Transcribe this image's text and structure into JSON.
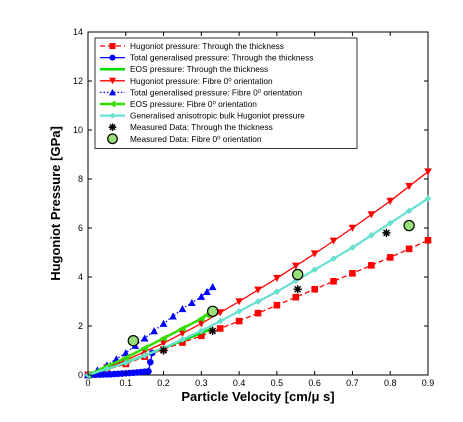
{
  "chart_data": {
    "type": "line",
    "title": "",
    "xlabel": "Particle Velocity  [cm/μ s]",
    "ylabel": "Hugoniot Pressure [GPa]",
    "xlim": [
      0,
      0.9
    ],
    "ylim": [
      0,
      14
    ],
    "xticks": [
      "0",
      "0.1",
      "0.2",
      "0.3",
      "0.4",
      "0.5",
      "0.6",
      "0.7",
      "0.8",
      "0.9"
    ],
    "yticks": [
      "0",
      "2",
      "4",
      "6",
      "8",
      "10",
      "12",
      "14"
    ],
    "grid": false,
    "legend_position": "top-left",
    "series": [
      {
        "name": "Hugoniot pressure: Through the thickness",
        "color": "#ff0000",
        "marker": "square",
        "line": "dashed",
        "x": [
          0,
          0.1,
          0.2,
          0.3,
          0.4,
          0.5,
          0.6,
          0.7,
          0.8,
          0.9
        ],
        "y": [
          0,
          0.45,
          1.05,
          1.6,
          2.2,
          2.85,
          3.5,
          4.15,
          4.8,
          5.5
        ]
      },
      {
        "name": "Total generalised pressure: Through the thickness",
        "color": "#0000ff",
        "marker": "circle",
        "line": "solid",
        "x": [
          0,
          0.02,
          0.04,
          0.06,
          0.08,
          0.1,
          0.12,
          0.14,
          0.16,
          0.17
        ],
        "y": [
          0,
          0.01,
          0.02,
          0.03,
          0.05,
          0.07,
          0.09,
          0.12,
          0.15,
          0.9
        ]
      },
      {
        "name": "EOS pressure: Through the thickness",
        "color": "#00e000",
        "marker": "none",
        "line": "solid",
        "x": [
          0,
          0.1,
          0.2,
          0.33
        ],
        "y": [
          0,
          0.5,
          1.1,
          1.9
        ]
      },
      {
        "name": "Hugoniot pressure: Fibre 0⁰ orientation",
        "color": "#ff0000",
        "marker": "triangle-down",
        "line": "solid",
        "x": [
          0,
          0.1,
          0.2,
          0.3,
          0.4,
          0.5,
          0.6,
          0.7,
          0.8,
          0.9
        ],
        "y": [
          0,
          0.6,
          1.3,
          2.1,
          3.0,
          3.95,
          4.95,
          6.0,
          7.1,
          8.3
        ]
      },
      {
        "name": "Total generalised pressure: Fibre 0⁰ orientation",
        "color": "#0000ff",
        "marker": "triangle-up",
        "line": "dotted",
        "x": [
          0,
          0.05,
          0.1,
          0.15,
          0.2,
          0.25,
          0.3,
          0.33
        ],
        "y": [
          0,
          0.4,
          0.9,
          1.5,
          2.1,
          2.7,
          3.2,
          3.6
        ]
      },
      {
        "name": "EOS pressure: Fibre 0⁰ orientation",
        "color": "#33dd00",
        "marker": "triangle-left",
        "line": "solid",
        "x": [
          0,
          0.1,
          0.2,
          0.3,
          0.33
        ],
        "y": [
          0,
          0.7,
          1.5,
          2.3,
          2.6
        ]
      },
      {
        "name": "Generalised anisotropic bulk Hugoniot pressure",
        "color": "#66e0d0",
        "marker": "diamond",
        "line": "solid",
        "x": [
          0,
          0.1,
          0.2,
          0.3,
          0.4,
          0.5,
          0.6,
          0.7,
          0.8,
          0.9
        ],
        "y": [
          0,
          0.5,
          1.1,
          1.8,
          2.6,
          3.4,
          4.3,
          5.2,
          6.2,
          7.2
        ]
      },
      {
        "name": "Measured Data: Through the thickness",
        "color": "#000000",
        "marker": "asterisk",
        "line": "none",
        "x": [
          0.2,
          0.33,
          0.555,
          0.79
        ],
        "y": [
          1.0,
          1.8,
          3.5,
          5.8
        ]
      },
      {
        "name": "Measured Data: Fibre 0⁰ orientation",
        "color": "#9ae07a",
        "marker": "circle-open",
        "line": "none",
        "x": [
          0.12,
          0.33,
          0.555,
          0.85
        ],
        "y": [
          1.4,
          2.6,
          4.1,
          6.1
        ]
      }
    ]
  }
}
